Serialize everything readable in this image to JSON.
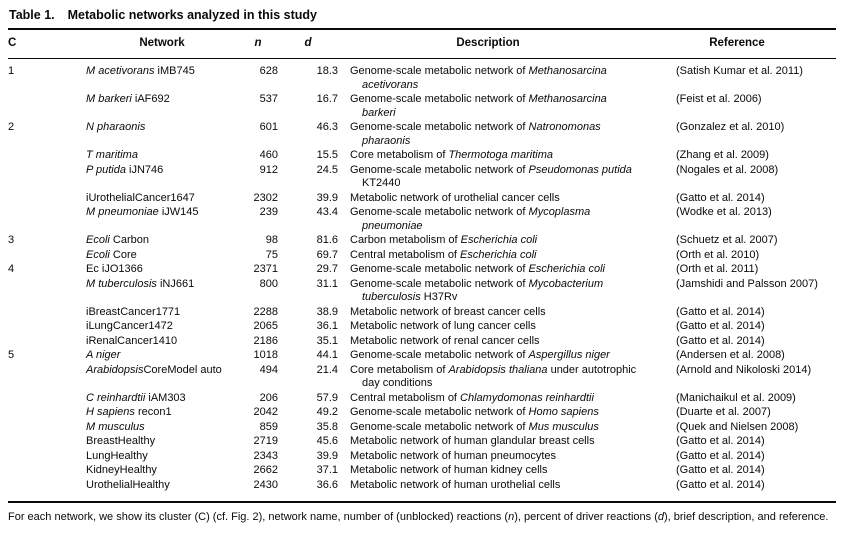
{
  "title": {
    "label": "Table 1.",
    "text": "Metabolic networks analyzed in this study"
  },
  "table": {
    "columns": [
      {
        "key": "c",
        "label": "C",
        "italic": false
      },
      {
        "key": "network",
        "label": "Network",
        "italic": false
      },
      {
        "key": "n",
        "label": "n",
        "italic": true
      },
      {
        "key": "d",
        "label": "d",
        "italic": true
      },
      {
        "key": "description",
        "label": "Description",
        "italic": false
      },
      {
        "key": "reference",
        "label": "Reference",
        "italic": false
      }
    ],
    "rows": [
      {
        "c": "1",
        "network": [
          [
            "M acetivorans",
            true
          ],
          [
            " iMB745",
            false
          ]
        ],
        "n": "628",
        "d": "18.3",
        "description": [
          [
            "Genome-scale metabolic network of ",
            false
          ],
          [
            "Methanosarcina acetivorans",
            true
          ]
        ],
        "reference": "(Satish Kumar et al. 2011)"
      },
      {
        "c": "",
        "network": [
          [
            "M barkeri",
            true
          ],
          [
            " iAF692",
            false
          ]
        ],
        "n": "537",
        "d": "16.7",
        "description": [
          [
            "Genome-scale metabolic network of ",
            false
          ],
          [
            "Methanosarcina barkeri",
            true
          ]
        ],
        "reference": "(Feist et al. 2006)"
      },
      {
        "c": "2",
        "network": [
          [
            "N pharaonis",
            true
          ]
        ],
        "n": "601",
        "d": "46.3",
        "description": [
          [
            "Genome-scale metabolic network of ",
            false
          ],
          [
            "Natronomonas pharaonis",
            true
          ]
        ],
        "reference": "(Gonzalez et al. 2010)"
      },
      {
        "c": "",
        "network": [
          [
            "T maritima",
            true
          ]
        ],
        "n": "460",
        "d": "15.5",
        "description": [
          [
            "Core metabolism of ",
            false
          ],
          [
            "Thermotoga maritima",
            true
          ]
        ],
        "reference": "(Zhang et al. 2009)"
      },
      {
        "c": "",
        "network": [
          [
            "P putida",
            true
          ],
          [
            " iJN746",
            false
          ]
        ],
        "n": "912",
        "d": "24.5",
        "description": [
          [
            "Genome-scale metabolic network of ",
            false
          ],
          [
            "Pseudomonas putida",
            true
          ],
          [
            " KT2440",
            false
          ]
        ],
        "reference": "(Nogales et al. 2008)"
      },
      {
        "c": "",
        "network": [
          [
            "iUrothelialCancer1647",
            false
          ]
        ],
        "n": "2302",
        "d": "39.9",
        "description": [
          [
            "Metabolic network of urothelial cancer cells",
            false
          ]
        ],
        "reference": "(Gatto et al. 2014)"
      },
      {
        "c": "",
        "network": [
          [
            "M pneumoniae",
            true
          ],
          [
            " iJW145",
            false
          ]
        ],
        "n": "239",
        "d": "43.4",
        "description": [
          [
            "Genome-scale metabolic network of ",
            false
          ],
          [
            "Mycoplasma pneumoniae",
            true
          ]
        ],
        "reference": "(Wodke et al. 2013)"
      },
      {
        "c": "3",
        "network": [
          [
            "Ecoli",
            true
          ],
          [
            " Carbon",
            false
          ]
        ],
        "n": "98",
        "d": "81.6",
        "description": [
          [
            "Carbon metabolism of ",
            false
          ],
          [
            "Escherichia coli",
            true
          ]
        ],
        "reference": "(Schuetz et al. 2007)"
      },
      {
        "c": "",
        "network": [
          [
            "Ecoli",
            true
          ],
          [
            " Core",
            false
          ]
        ],
        "n": "75",
        "d": "69.7",
        "description": [
          [
            "Central metabolism of ",
            false
          ],
          [
            "Escherichia coli",
            true
          ]
        ],
        "reference": "(Orth et al. 2010)"
      },
      {
        "c": "4",
        "network": [
          [
            "Ec iJO1366",
            false
          ]
        ],
        "n": "2371",
        "d": "29.7",
        "description": [
          [
            "Genome-scale metabolic network of ",
            false
          ],
          [
            "Escherichia coli",
            true
          ]
        ],
        "reference": "(Orth et al. 2011)"
      },
      {
        "c": "",
        "network": [
          [
            "M tuberculosis",
            true
          ],
          [
            " iNJ661",
            false
          ]
        ],
        "n": "800",
        "d": "31.1",
        "description": [
          [
            "Genome-scale metabolic network of ",
            false
          ],
          [
            "Mycobacterium tuberculosis",
            true
          ],
          [
            " H37Rv",
            false
          ]
        ],
        "reference": "(Jamshidi and Palsson 2007)"
      },
      {
        "c": "",
        "network": [
          [
            "iBreastCancer1771",
            false
          ]
        ],
        "n": "2288",
        "d": "38.9",
        "description": [
          [
            "Metabolic network of breast cancer cells",
            false
          ]
        ],
        "reference": "(Gatto et al. 2014)"
      },
      {
        "c": "",
        "network": [
          [
            "iLungCancer1472",
            false
          ]
        ],
        "n": "2065",
        "d": "36.1",
        "description": [
          [
            "Metabolic network of lung cancer cells",
            false
          ]
        ],
        "reference": "(Gatto et al. 2014)"
      },
      {
        "c": "",
        "network": [
          [
            "iRenalCancer1410",
            false
          ]
        ],
        "n": "2186",
        "d": "35.1",
        "description": [
          [
            "Metabolic network of renal cancer cells",
            false
          ]
        ],
        "reference": "(Gatto et al. 2014)"
      },
      {
        "c": "5",
        "network": [
          [
            "A niger",
            true
          ]
        ],
        "n": "1018",
        "d": "44.1",
        "description": [
          [
            "Genome-scale metabolic network of ",
            false
          ],
          [
            "Aspergillus niger",
            true
          ]
        ],
        "reference": "(Andersen et al. 2008)"
      },
      {
        "c": "",
        "network": [
          [
            "Arabidopsis",
            true
          ],
          [
            "CoreModel auto",
            false
          ]
        ],
        "n": "494",
        "d": "21.4",
        "description": [
          [
            "Core metabolism of ",
            false
          ],
          [
            "Arabidopsis thaliana",
            true
          ],
          [
            " under autotrophic day conditions",
            false
          ]
        ],
        "reference": "(Arnold and Nikoloski 2014)"
      },
      {
        "c": "",
        "network": [
          [
            "C reinhardtii",
            true
          ],
          [
            " iAM303",
            false
          ]
        ],
        "n": "206",
        "d": "57.9",
        "description": [
          [
            "Central metabolism of ",
            false
          ],
          [
            "Chlamydomonas reinhardtii",
            true
          ]
        ],
        "reference": "(Manichaikul et al. 2009)"
      },
      {
        "c": "",
        "network": [
          [
            "H sapiens",
            true
          ],
          [
            " recon1",
            false
          ]
        ],
        "n": "2042",
        "d": "49.2",
        "description": [
          [
            "Genome-scale metabolic network of ",
            false
          ],
          [
            "Homo sapiens",
            true
          ]
        ],
        "reference": "(Duarte et al. 2007)"
      },
      {
        "c": "",
        "network": [
          [
            "M musculus",
            true
          ]
        ],
        "n": "859",
        "d": "35.8",
        "description": [
          [
            "Genome-scale metabolic network of ",
            false
          ],
          [
            "Mus musculus",
            true
          ]
        ],
        "reference": "(Quek and Nielsen 2008)"
      },
      {
        "c": "",
        "network": [
          [
            "BreastHealthy",
            false
          ]
        ],
        "n": "2719",
        "d": "45.6",
        "description": [
          [
            "Metabolic network of human glandular breast cells",
            false
          ]
        ],
        "reference": "(Gatto et al. 2014)"
      },
      {
        "c": "",
        "network": [
          [
            "LungHealthy",
            false
          ]
        ],
        "n": "2343",
        "d": "39.9",
        "description": [
          [
            "Metabolic network of human pneumocytes",
            false
          ]
        ],
        "reference": "(Gatto et al. 2014)"
      },
      {
        "c": "",
        "network": [
          [
            "KidneyHealthy",
            false
          ]
        ],
        "n": "2662",
        "d": "37.1",
        "description": [
          [
            "Metabolic network of human kidney cells",
            false
          ]
        ],
        "reference": "(Gatto et al. 2014)"
      },
      {
        "c": "",
        "network": [
          [
            "UrothelialHealthy",
            false
          ]
        ],
        "n": "2430",
        "d": "36.6",
        "description": [
          [
            "Metabolic network of human urothelial cells",
            false
          ]
        ],
        "reference": "(Gatto et al. 2014)"
      }
    ]
  },
  "footnote": [
    [
      "For each network, we show its cluster (C) (cf. Fig. 2), network name, number of (unblocked) reactions (",
      false
    ],
    [
      "n",
      true
    ],
    [
      "), percent of driver reactions (",
      false
    ],
    [
      "d",
      true
    ],
    [
      "), brief description, and reference.",
      false
    ]
  ]
}
